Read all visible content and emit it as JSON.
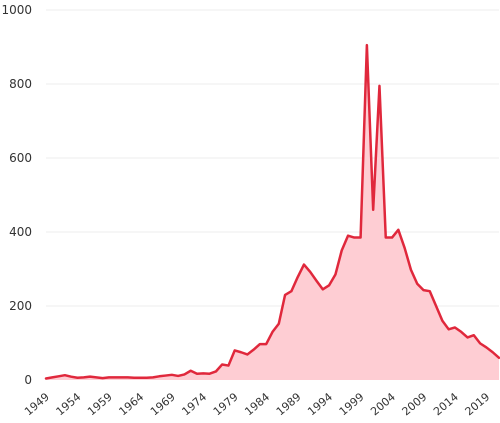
{
  "colors": {
    "line": "#e0283c",
    "fill": "#fecdd3",
    "grid": "#ececec",
    "text": "#333333"
  },
  "chart_data": {
    "type": "area",
    "title": "",
    "xlabel": "",
    "ylabel": "",
    "ylim": [
      0,
      1000
    ],
    "xlim": [
      1949,
      2021
    ],
    "yticks": [
      0,
      200,
      400,
      600,
      800,
      1000
    ],
    "xticks": [
      1949,
      1954,
      1959,
      1964,
      1969,
      1974,
      1979,
      1984,
      1989,
      1994,
      1999,
      2004,
      2009,
      2014,
      2019
    ],
    "grid": true,
    "legend": "none",
    "series": [
      {
        "x": [
          1949,
          1950,
          1951,
          1952,
          1953,
          1954,
          1955,
          1956,
          1957,
          1958,
          1959,
          1960,
          1961,
          1962,
          1963,
          1964,
          1965,
          1966,
          1967,
          1968,
          1969,
          1970,
          1971,
          1972,
          1973,
          1974,
          1975,
          1976,
          1977,
          1978,
          1979,
          1980,
          1981,
          1982,
          1983,
          1984,
          1985,
          1986,
          1987,
          1988,
          1989,
          1990,
          1991,
          1992,
          1993,
          1994,
          1995,
          1996,
          1997,
          1998,
          1999,
          2000,
          2001,
          2002,
          2003,
          2004,
          2005,
          2006,
          2007,
          2008,
          2009,
          2010,
          2011,
          2012,
          2013,
          2014,
          2015,
          2016,
          2017,
          2018,
          2019,
          2020,
          2021
        ],
        "y": [
          4,
          7,
          10,
          13,
          9,
          6,
          7,
          9,
          7,
          5,
          7,
          7,
          7,
          7,
          6,
          6,
          6,
          7,
          10,
          12,
          14,
          11,
          15,
          25,
          17,
          18,
          17,
          23,
          42,
          39,
          80,
          75,
          69,
          82,
          97,
          97,
          130,
          152,
          230,
          240,
          278,
          312,
          292,
          268,
          245,
          256,
          285,
          350,
          390,
          385,
          385,
          905,
          460,
          795,
          385,
          385,
          406,
          357,
          298,
          260,
          243,
          240,
          200,
          160,
          137,
          142,
          130,
          115,
          121,
          99,
          88,
          75,
          60
        ]
      }
    ]
  }
}
